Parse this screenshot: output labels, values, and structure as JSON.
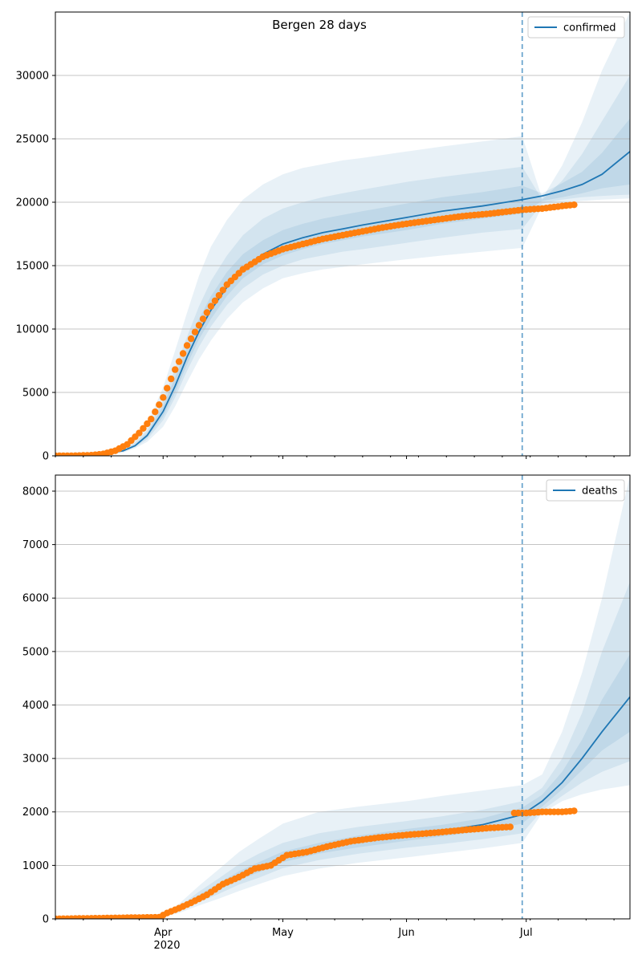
{
  "figure": {
    "title": "Bergen 28 days"
  },
  "x_ticks": {
    "major": [
      "2020-04-01",
      "2020-05-01",
      "2020-06-01",
      "2020-07-01"
    ],
    "major_labels": [
      "Apr",
      "May",
      "Jun",
      "Jul"
    ],
    "year_label": "2020"
  },
  "colors": {
    "model": "#1f77b4",
    "observed": "#ff7f0e",
    "grid": "#b0b0b0"
  },
  "chart_data": [
    {
      "type": "line",
      "name": "confirmed",
      "title": "Bergen 28 days",
      "xlabel": "",
      "ylabel": "",
      "xlim": [
        "2020-03-05",
        "2020-07-27"
      ],
      "ylim": [
        0,
        35000
      ],
      "grid": "horizontal",
      "legend": "top-right",
      "yticks": [
        0,
        5000,
        10000,
        15000,
        20000,
        25000,
        30000
      ],
      "forecast_start": "2020-06-30",
      "series": [
        {
          "name": "confirmed",
          "kind": "model-median",
          "x": [
            "2020-03-05",
            "2020-03-15",
            "2020-03-22",
            "2020-03-25",
            "2020-03-28",
            "2020-04-01",
            "2020-04-04",
            "2020-04-07",
            "2020-04-10",
            "2020-04-13",
            "2020-04-17",
            "2020-04-21",
            "2020-04-26",
            "2020-05-01",
            "2020-05-06",
            "2020-05-11",
            "2020-05-16",
            "2020-05-21",
            "2020-06-01",
            "2020-06-10",
            "2020-06-20",
            "2020-06-30",
            "2020-07-05",
            "2020-07-10",
            "2020-07-15",
            "2020-07-20",
            "2020-07-27"
          ],
          "y": [
            0,
            50,
            400,
            800,
            1600,
            3500,
            5500,
            7800,
            9800,
            11500,
            13300,
            14700,
            15900,
            16700,
            17200,
            17600,
            17900,
            18200,
            18800,
            19300,
            19700,
            20200,
            20500,
            20900,
            21400,
            22200,
            24000
          ]
        },
        {
          "name": "observed",
          "kind": "observed-points",
          "x": [
            "2020-03-05",
            "2020-03-10",
            "2020-03-14",
            "2020-03-17",
            "2020-03-20",
            "2020-03-23",
            "2020-03-26",
            "2020-03-29",
            "2020-04-01",
            "2020-04-04",
            "2020-04-07",
            "2020-04-10",
            "2020-04-13",
            "2020-04-17",
            "2020-04-21",
            "2020-04-26",
            "2020-05-01",
            "2020-05-06",
            "2020-05-11",
            "2020-05-16",
            "2020-05-21",
            "2020-05-26",
            "2020-06-01",
            "2020-06-08",
            "2020-06-15",
            "2020-06-22",
            "2020-06-30",
            "2020-07-05",
            "2020-07-10",
            "2020-07-13"
          ],
          "y": [
            0,
            10,
            50,
            150,
            400,
            900,
            1800,
            2900,
            4600,
            6800,
            8700,
            10300,
            11800,
            13500,
            14700,
            15700,
            16300,
            16700,
            17100,
            17400,
            17700,
            18000,
            18300,
            18600,
            18900,
            19100,
            19400,
            19500,
            19700,
            19800
          ]
        }
      ],
      "bands": [
        {
          "level": "outer",
          "x": [
            "2020-03-05",
            "2020-03-15",
            "2020-03-22",
            "2020-03-25",
            "2020-03-28",
            "2020-04-01",
            "2020-04-04",
            "2020-04-07",
            "2020-04-10",
            "2020-04-13",
            "2020-04-17",
            "2020-04-21",
            "2020-04-26",
            "2020-05-01",
            "2020-05-06",
            "2020-05-11",
            "2020-05-16",
            "2020-05-21",
            "2020-06-01",
            "2020-06-10",
            "2020-06-20",
            "2020-06-30",
            "2020-07-05",
            "2020-07-10",
            "2020-07-15",
            "2020-07-20",
            "2020-07-27"
          ],
          "lo": [
            0,
            50,
            250,
            600,
            1100,
            2300,
            3900,
            5800,
            7600,
            9100,
            10800,
            12100,
            13200,
            14000,
            14400,
            14700,
            14900,
            15100,
            15500,
            15800,
            16100,
            16400,
            19700,
            20000,
            20100,
            20200,
            20300
          ],
          "hi": [
            0,
            60,
            600,
            1300,
            2500,
            5400,
            8300,
            11300,
            14200,
            16500,
            18600,
            20200,
            21400,
            22200,
            22700,
            23000,
            23300,
            23500,
            24000,
            24400,
            24800,
            25200,
            20300,
            22900,
            26300,
            30400,
            35000
          ]
        },
        {
          "level": "middle",
          "x": [
            "2020-03-05",
            "2020-03-15",
            "2020-03-22",
            "2020-03-25",
            "2020-03-28",
            "2020-04-01",
            "2020-04-04",
            "2020-04-07",
            "2020-04-10",
            "2020-04-13",
            "2020-04-17",
            "2020-04-21",
            "2020-04-26",
            "2020-05-01",
            "2020-05-06",
            "2020-05-11",
            "2020-05-16",
            "2020-05-21",
            "2020-06-01",
            "2020-06-10",
            "2020-06-20",
            "2020-06-30",
            "2020-07-05",
            "2020-07-10",
            "2020-07-15",
            "2020-07-20",
            "2020-07-27"
          ],
          "lo": [
            0,
            50,
            330,
            680,
            1300,
            2800,
            4600,
            6700,
            8600,
            10200,
            11900,
            13200,
            14300,
            15000,
            15500,
            15800,
            16100,
            16300,
            16800,
            17200,
            17600,
            17900,
            19900,
            20200,
            20400,
            20500,
            20600
          ],
          "hi": [
            0,
            55,
            500,
            1050,
            2000,
            4400,
            6900,
            9400,
            11800,
            13800,
            15800,
            17400,
            18700,
            19500,
            20000,
            20400,
            20700,
            21000,
            21600,
            22000,
            22400,
            22800,
            20200,
            21700,
            23800,
            26400,
            30000
          ]
        },
        {
          "level": "inner",
          "x": [
            "2020-03-05",
            "2020-03-15",
            "2020-03-22",
            "2020-03-25",
            "2020-03-28",
            "2020-04-01",
            "2020-04-04",
            "2020-04-07",
            "2020-04-10",
            "2020-04-13",
            "2020-04-17",
            "2020-04-21",
            "2020-04-26",
            "2020-05-01",
            "2020-05-06",
            "2020-05-11",
            "2020-05-16",
            "2020-05-21",
            "2020-06-01",
            "2020-06-10",
            "2020-06-20",
            "2020-06-30",
            "2020-07-05",
            "2020-07-10",
            "2020-07-15",
            "2020-07-20",
            "2020-07-27"
          ],
          "lo": [
            0,
            50,
            370,
            740,
            1450,
            3100,
            5000,
            7200,
            9200,
            10800,
            12600,
            14000,
            15100,
            15800,
            16300,
            16700,
            17000,
            17300,
            17800,
            18300,
            18700,
            19100,
            20100,
            20400,
            20700,
            21100,
            21400
          ],
          "hi": [
            0,
            52,
            440,
            900,
            1800,
            3950,
            6200,
            8600,
            10800,
            12600,
            14500,
            15900,
            17000,
            17800,
            18300,
            18700,
            19000,
            19300,
            19900,
            20400,
            20800,
            21300,
            20700,
            21500,
            22400,
            23900,
            26600
          ]
        }
      ]
    },
    {
      "type": "line",
      "name": "deaths",
      "xlabel": "",
      "ylabel": "",
      "xlim": [
        "2020-03-05",
        "2020-07-27"
      ],
      "ylim": [
        0,
        8300
      ],
      "grid": "horizontal",
      "legend": "top-right",
      "yticks": [
        0,
        1000,
        2000,
        3000,
        4000,
        5000,
        6000,
        7000,
        8000
      ],
      "forecast_start": "2020-06-30",
      "series": [
        {
          "name": "deaths",
          "kind": "model-median",
          "x": [
            "2020-03-05",
            "2020-03-31",
            "2020-04-05",
            "2020-04-10",
            "2020-04-15",
            "2020-04-20",
            "2020-04-25",
            "2020-05-01",
            "2020-05-10",
            "2020-05-20",
            "2020-06-01",
            "2020-06-10",
            "2020-06-20",
            "2020-06-30",
            "2020-07-05",
            "2020-07-10",
            "2020-07-15",
            "2020-07-20",
            "2020-07-27"
          ],
          "y": [
            0,
            30,
            180,
            400,
            600,
            800,
            950,
            1150,
            1320,
            1450,
            1570,
            1650,
            1760,
            1950,
            2200,
            2550,
            3000,
            3500,
            4150
          ]
        },
        {
          "name": "observed",
          "kind": "observed-points",
          "x": [
            "2020-03-05",
            "2020-03-31",
            "2020-04-02",
            "2020-04-05",
            "2020-04-08",
            "2020-04-12",
            "2020-04-16",
            "2020-04-20",
            "2020-04-24",
            "2020-04-28",
            "2020-05-02",
            "2020-05-07",
            "2020-05-12",
            "2020-05-18",
            "2020-05-25",
            "2020-06-01",
            "2020-06-08",
            "2020-06-15",
            "2020-06-22",
            "2020-06-27",
            "2020-06-28",
            "2020-07-01",
            "2020-07-05",
            "2020-07-10",
            "2020-07-13"
          ],
          "y": [
            0,
            30,
            110,
            200,
            300,
            450,
            650,
            780,
            940,
            1000,
            1190,
            1250,
            1350,
            1450,
            1520,
            1570,
            1610,
            1660,
            1700,
            1720,
            1980,
            1980,
            2000,
            2000,
            2020
          ]
        }
      ],
      "bands": [
        {
          "level": "outer",
          "x": [
            "2020-03-05",
            "2020-03-31",
            "2020-04-05",
            "2020-04-10",
            "2020-04-15",
            "2020-04-20",
            "2020-04-25",
            "2020-05-01",
            "2020-05-10",
            "2020-05-20",
            "2020-06-01",
            "2020-06-10",
            "2020-06-20",
            "2020-06-30",
            "2020-07-05",
            "2020-07-10",
            "2020-07-15",
            "2020-07-20",
            "2020-07-27"
          ],
          "lo": [
            0,
            25,
            110,
            250,
            380,
            520,
            650,
            800,
            940,
            1050,
            1150,
            1230,
            1320,
            1420,
            1980,
            2200,
            2330,
            2420,
            2500
          ],
          "hi": [
            0,
            40,
            280,
            620,
            930,
            1250,
            1500,
            1780,
            2000,
            2100,
            2200,
            2300,
            2400,
            2500,
            2700,
            3500,
            4600,
            6000,
            8300
          ]
        },
        {
          "level": "middle",
          "x": [
            "2020-03-05",
            "2020-03-31",
            "2020-04-05",
            "2020-04-10",
            "2020-04-15",
            "2020-04-20",
            "2020-04-25",
            "2020-05-01",
            "2020-05-10",
            "2020-05-20",
            "2020-06-01",
            "2020-06-10",
            "2020-06-20",
            "2020-06-30",
            "2020-07-05",
            "2020-07-10",
            "2020-07-15",
            "2020-07-20",
            "2020-07-27"
          ],
          "lo": [
            0,
            27,
            140,
            310,
            470,
            640,
            770,
            950,
            1100,
            1220,
            1330,
            1400,
            1490,
            1600,
            2030,
            2300,
            2550,
            2750,
            2950
          ],
          "hi": [
            0,
            35,
            230,
            510,
            760,
            1020,
            1220,
            1420,
            1600,
            1720,
            1830,
            1920,
            2040,
            2200,
            2450,
            3000,
            3850,
            5000,
            6300
          ]
        },
        {
          "level": "inner",
          "x": [
            "2020-03-05",
            "2020-03-31",
            "2020-04-05",
            "2020-04-10",
            "2020-04-15",
            "2020-04-20",
            "2020-04-25",
            "2020-05-01",
            "2020-05-10",
            "2020-05-20",
            "2020-06-01",
            "2020-06-10",
            "2020-06-20",
            "2020-06-30",
            "2020-07-05",
            "2020-07-10",
            "2020-07-15",
            "2020-07-20",
            "2020-07-27"
          ],
          "lo": [
            0,
            28,
            160,
            360,
            540,
            730,
            870,
            1060,
            1220,
            1340,
            1460,
            1540,
            1640,
            1780,
            2100,
            2420,
            2780,
            3150,
            3500
          ],
          "hi": [
            0,
            32,
            200,
            450,
            670,
            890,
            1060,
            1260,
            1420,
            1560,
            1680,
            1760,
            1880,
            2080,
            2320,
            2750,
            3350,
            4100,
            4950
          ]
        }
      ]
    }
  ]
}
